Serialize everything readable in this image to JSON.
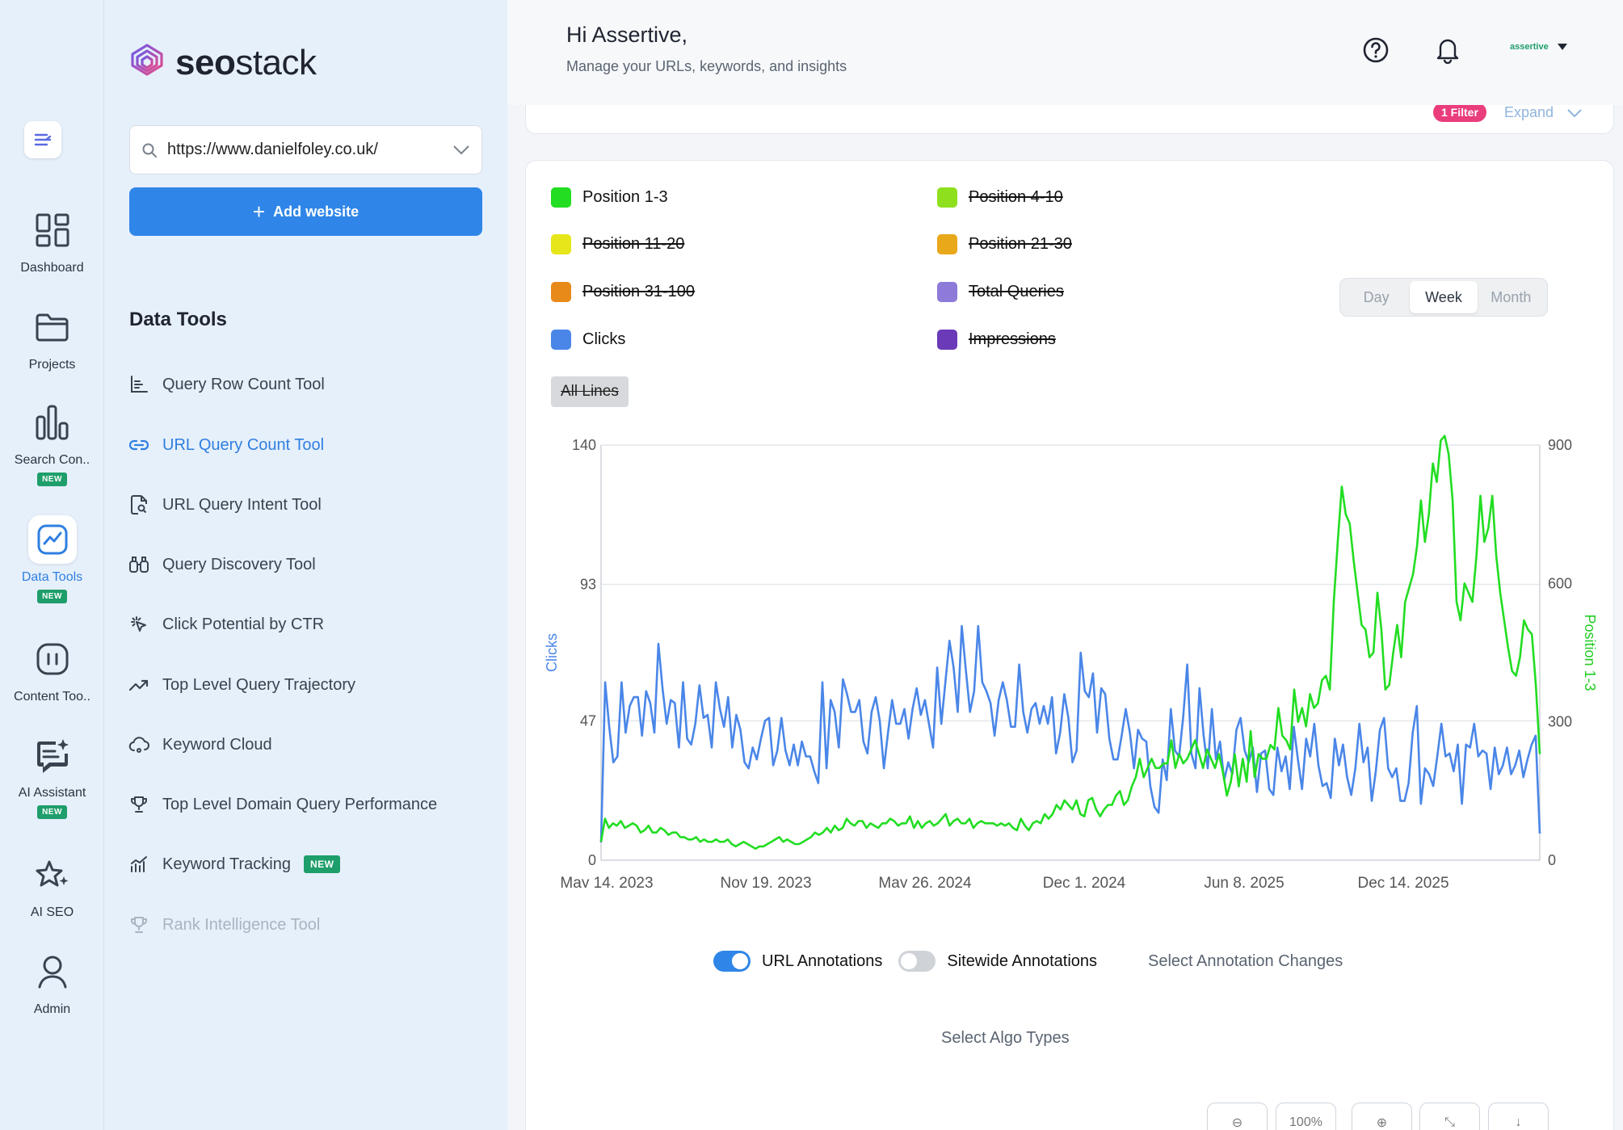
{
  "rail": {
    "items": [
      {
        "label": "Dashboard",
        "icon": "dashboard-icon"
      },
      {
        "label": "Projects",
        "icon": "folder-icon"
      },
      {
        "label": "Search Con..",
        "icon": "bar-chart-icon",
        "badge": "NEW"
      },
      {
        "label": "Data Tools",
        "icon": "trend-icon",
        "badge": "NEW",
        "active": true
      },
      {
        "label": "Content Too..",
        "icon": "content-icon"
      },
      {
        "label": "AI Assistant",
        "icon": "chat-sparkle-icon",
        "badge": "NEW"
      },
      {
        "label": "AI SEO",
        "icon": "star-sparkle-icon"
      },
      {
        "label": "Admin",
        "icon": "user-icon"
      }
    ]
  },
  "panel": {
    "logo_bold": "seo",
    "logo_light": "stack",
    "site_url": "https://www.danielfoley.co.uk/",
    "add_website": "Add website",
    "heading": "Data Tools",
    "tools": [
      {
        "label": "Query Row Count Tool",
        "icon": "axis-chart-icon"
      },
      {
        "label": "URL Query Count Tool",
        "icon": "link-icon",
        "active": true
      },
      {
        "label": "URL Query Intent Tool",
        "icon": "doc-search-icon"
      },
      {
        "label": "Query Discovery Tool",
        "icon": "binoculars-icon"
      },
      {
        "label": "Click Potential by CTR",
        "icon": "cursor-click-icon"
      },
      {
        "label": "Top Level Query Trajectory",
        "icon": "trend-up-icon"
      },
      {
        "label": "Keyword Cloud",
        "icon": "cloud-icon"
      },
      {
        "label": "Top Level Domain Query Performance",
        "icon": "trophy-icon"
      },
      {
        "label": "Keyword Tracking",
        "icon": "signal-chart-icon",
        "badge": "NEW"
      },
      {
        "label": "Rank Intelligence Tool",
        "icon": "trophy-icon",
        "disabled": true
      }
    ]
  },
  "header": {
    "greeting": "Hi Assertive,",
    "subtitle": "Manage your URLs, keywords, and insights",
    "account_name": "assertive"
  },
  "filters": {
    "badge": "1 Filter",
    "expand": "Expand"
  },
  "legend": [
    {
      "label": "Position 1-3",
      "color": "#22dd22",
      "on": true
    },
    {
      "label": "Position 4-10",
      "color": "#8ee01e",
      "on": false
    },
    {
      "label": "Position 11-20",
      "color": "#e6e61a",
      "on": false
    },
    {
      "label": "Position 21-30",
      "color": "#e8a81a",
      "on": false
    },
    {
      "label": "Position 31-100",
      "color": "#e88a1a",
      "on": false
    },
    {
      "label": "Total Queries",
      "color": "#8e7ad8",
      "on": false
    },
    {
      "label": "Clicks",
      "color": "#4a86e8",
      "on": true
    },
    {
      "label": "Impressions",
      "color": "#6a3ab8",
      "on": false
    }
  ],
  "all_lines": "All Lines",
  "period": {
    "options": [
      "Day",
      "Week",
      "Month"
    ],
    "selected": "Week"
  },
  "chart_data": {
    "type": "line",
    "x_tick_labels": [
      "May 14, 2023",
      "Nov 19, 2023",
      "May 26, 2024",
      "Dec 1, 2024",
      "Jun 8, 2025",
      "Dec 14, 2025"
    ],
    "y_left": {
      "label": "Clicks",
      "ticks": [
        0,
        47,
        93,
        140
      ],
      "range": [
        0,
        140
      ]
    },
    "y_right": {
      "label": "Position 1-3",
      "ticks": [
        0,
        300,
        600,
        900
      ],
      "range": [
        0,
        900
      ]
    },
    "series": [
      {
        "name": "Clicks",
        "axis": "left",
        "color": "#4a86e8",
        "values": [
          6,
          60,
          45,
          33,
          35,
          60,
          43,
          52,
          55,
          55,
          42,
          57,
          53,
          43,
          73,
          58,
          46,
          54,
          53,
          38,
          60,
          41,
          39,
          46,
          59,
          48,
          49,
          38,
          60,
          51,
          45,
          55,
          38,
          49,
          44,
          33,
          31,
          38,
          34,
          41,
          47,
          48,
          32,
          37,
          48,
          37,
          32,
          39,
          32,
          40,
          35,
          35,
          30,
          26,
          60,
          31,
          54,
          50,
          38,
          61,
          56,
          50,
          50,
          54,
          40,
          36,
          50,
          55,
          47,
          31,
          43,
          54,
          46,
          46,
          51,
          41,
          51,
          58,
          49,
          54,
          46,
          38,
          65,
          46,
          60,
          74,
          65,
          50,
          79,
          64,
          50,
          57,
          79,
          60,
          57,
          53,
          42,
          54,
          60,
          54,
          45,
          45,
          66,
          50,
          43,
          51,
          53,
          46,
          52,
          46,
          55,
          36,
          43,
          56,
          48,
          33,
          37,
          70,
          57,
          55,
          63,
          43,
          58,
          56,
          41,
          34,
          34,
          42,
          51,
          43,
          31,
          44,
          41,
          40,
          25,
          18,
          16,
          34,
          27,
          51,
          37,
          35,
          48,
          66,
          36,
          31,
          58,
          42,
          31,
          51,
          34,
          40,
          27,
          33,
          29,
          44,
          48,
          37,
          33,
          38,
          23,
          36,
          37,
          24,
          22,
          38,
          30,
          35,
          24,
          45,
          34,
          24,
          41,
          35,
          46,
          32,
          25,
          26,
          21,
          41,
          32,
          39,
          28,
          22,
          31,
          46,
          33,
          38,
          20,
          30,
          44,
          48,
          31,
          28,
          31,
          20,
          20,
          26,
          43,
          52,
          19,
          31,
          29,
          25,
          35,
          46,
          35,
          36,
          30,
          39,
          19,
          39,
          38,
          46,
          35,
          37,
          36,
          24,
          38,
          29,
          32,
          38,
          29,
          32,
          37,
          28,
          34,
          39,
          42,
          9
        ],
        "note": "approximate weekly values read from chart"
      },
      {
        "name": "Position 1-3",
        "axis": "right",
        "color": "#22dd22",
        "values": [
          40,
          90,
          70,
          80,
          75,
          85,
          70,
          75,
          80,
          75,
          60,
          65,
          75,
          60,
          60,
          70,
          65,
          55,
          60,
          60,
          50,
          50,
          45,
          45,
          50,
          40,
          45,
          40,
          40,
          45,
          40,
          40,
          45,
          35,
          30,
          35,
          40,
          35,
          30,
          25,
          30,
          30,
          35,
          40,
          45,
          50,
          40,
          45,
          40,
          35,
          35,
          40,
          45,
          50,
          60,
          55,
          60,
          70,
          60,
          75,
          65,
          70,
          90,
          80,
          75,
          85,
          85,
          70,
          80,
          75,
          70,
          80,
          80,
          90,
          85,
          75,
          80,
          80,
          95,
          70,
          85,
          70,
          80,
          85,
          75,
          80,
          90,
          100,
          75,
          85,
          90,
          80,
          80,
          90,
          70,
          80,
          85,
          80,
          80,
          80,
          75,
          80,
          75,
          80,
          70,
          65,
          90,
          75,
          65,
          80,
          85,
          80,
          100,
          90,
          100,
          120,
          110,
          130,
          120,
          110,
          130,
          100,
          95,
          130,
          135,
          110,
          95,
          110,
          120,
          120,
          140,
          150,
          120,
          130,
          160,
          180,
          220,
          180,
          200,
          220,
          200,
          200,
          210,
          210,
          260,
          200,
          230,
          210,
          220,
          240,
          260,
          230,
          200,
          240,
          220,
          200,
          230,
          190,
          140,
          170,
          230,
          160,
          220,
          170,
          280,
          180,
          230,
          220,
          220,
          250,
          240,
          330,
          270,
          260,
          240,
          370,
          300,
          330,
          290,
          360,
          330,
          340,
          390,
          400,
          370,
          560,
          690,
          810,
          750,
          730,
          650,
          580,
          510,
          500,
          440,
          450,
          580,
          500,
          370,
          380,
          450,
          510,
          440,
          560,
          590,
          620,
          680,
          780,
          690,
          750,
          860,
          820,
          910,
          920,
          880,
          780,
          560,
          520,
          600,
          580,
          560,
          660,
          790,
          690,
          720,
          790,
          660,
          580,
          520,
          460,
          410,
          400,
          440,
          520,
          500,
          490,
          380,
          230
        ],
        "note": "approximate weekly values read from chart"
      }
    ]
  },
  "annotations": {
    "url_label": "URL Annotations",
    "url_on": true,
    "sitewide_label": "Sitewide Annotations",
    "sitewide_on": false,
    "select_changes": "Select Annotation Changes",
    "select_algo": "Select Algo Types"
  },
  "zoom": {
    "level": "100%"
  }
}
